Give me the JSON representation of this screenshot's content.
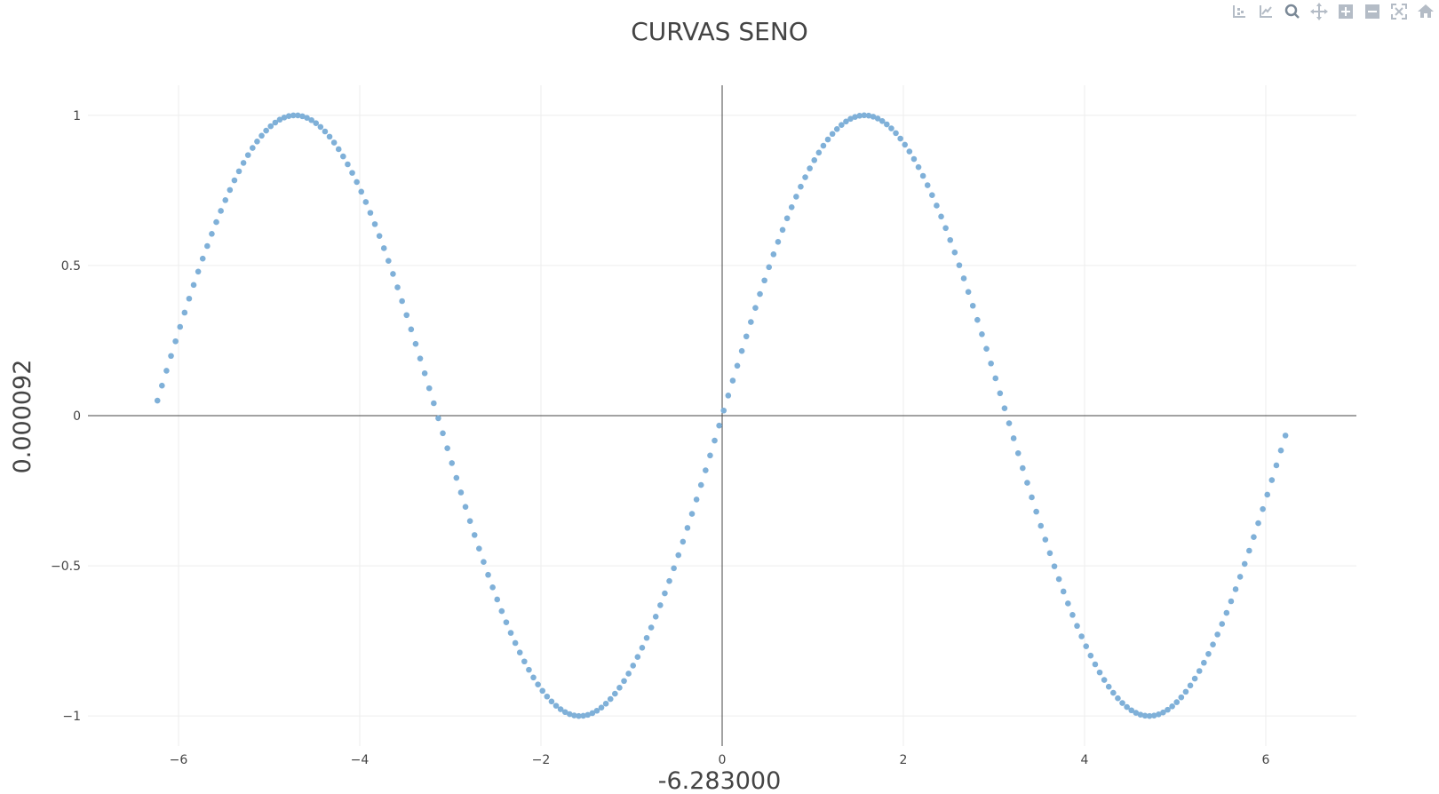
{
  "chart_data": {
    "type": "scatter",
    "title": "CURVAS SENO",
    "xlabel": "-6.283000",
    "ylabel": "0.000092",
    "xlim": [
      -7.0,
      7.0
    ],
    "ylim": [
      -1.1,
      1.1
    ],
    "x_ticks": [
      -6,
      -4,
      -2,
      0,
      2,
      4,
      6
    ],
    "x_tick_labels": [
      "−6",
      "−4",
      "−2",
      "0",
      "2",
      "4",
      "6"
    ],
    "y_ticks": [
      -1,
      -0.5,
      0,
      0.5,
      1
    ],
    "y_tick_labels": [
      "−1",
      "−0.5",
      "0",
      "0.5",
      "1"
    ],
    "grid": true,
    "series": [
      {
        "function": "sin(x)",
        "x_start": -6.233,
        "x_end": 6.233,
        "x_step": 0.05,
        "color": "#7fb0d8"
      }
    ]
  },
  "modebar": {
    "icons": [
      "compare-data-icon",
      "closest-data-icon",
      "zoom-icon",
      "pan-icon",
      "zoom-in-icon",
      "zoom-out-icon",
      "autoscale-icon",
      "reset-axes-icon"
    ],
    "color": "#b4bcc6"
  },
  "colors": {
    "grid": "#eeeeee",
    "zero_line": "#444444",
    "text": "#444444"
  }
}
